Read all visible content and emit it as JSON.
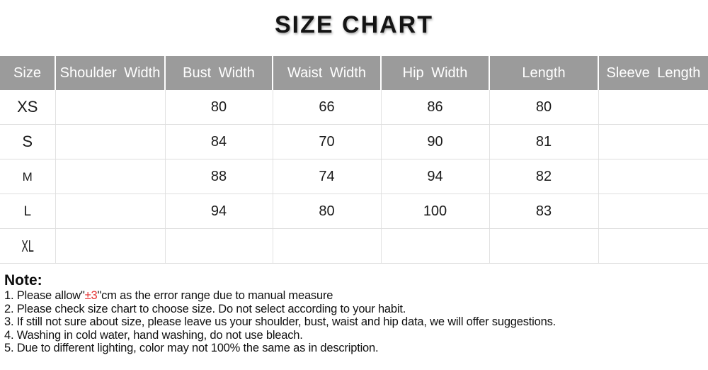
{
  "title": "SIZE CHART",
  "colors": {
    "header_bg": "#9b9b9b",
    "header_text": "#ffffff",
    "body_text": "#1a1a1a",
    "grid_line": "#e2e2e2",
    "accent_red": "#e53333"
  },
  "table": {
    "columns": [
      "Size",
      "Shoulder Width",
      "Bust Width",
      "Waist Width",
      "Hip Width",
      "Length",
      "Sleeve Length"
    ],
    "rows": [
      [
        "XS",
        "",
        "80",
        "66",
        "86",
        "80",
        ""
      ],
      [
        "S",
        "",
        "84",
        "70",
        "90",
        "81",
        ""
      ],
      [
        "M",
        "",
        "88",
        "74",
        "94",
        "82",
        ""
      ],
      [
        "L",
        "",
        "94",
        "80",
        "100",
        "83",
        ""
      ],
      [
        "XL",
        "",
        "",
        "",
        "",
        "",
        ""
      ]
    ]
  },
  "notes": {
    "heading": "Note:",
    "line1_prefix": "1. Please allow\"",
    "line1_highlight": "±3",
    "line1_suffix": "\"cm as the error range due to manual measure",
    "lines": [
      "2. Please check size chart to choose size. Do not select according to your habit.",
      "3. If still not sure about size, please leave us your shoulder, bust, waist and hip data, we will offer suggestions.",
      "4. Washing in cold water, hand washing, do not use bleach.",
      "5. Due to different lighting, color may not 100% the same as in description."
    ]
  }
}
